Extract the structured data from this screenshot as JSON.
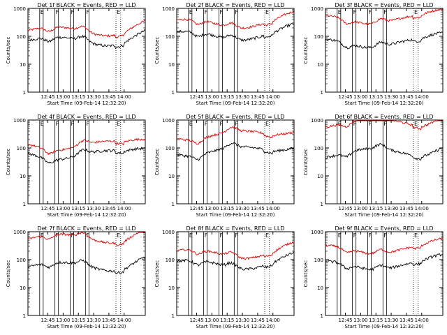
{
  "figure": {
    "panels": [
      {
        "title": "Det 1f BLACK = Events, RED = LLD",
        "events_base": 70,
        "lld_base": 160
      },
      {
        "title": "Det 2f BLACK = Events, RED = LLD",
        "events_base": 110,
        "lld_base": 300
      },
      {
        "title": "Det 3f BLACK = Events, RED = LLD",
        "events_base": 60,
        "lld_base": 420
      },
      {
        "title": "Det 4f BLACK = Events, RED = LLD",
        "events_base": 60,
        "lld_base": 130
      },
      {
        "title": "Det 5f BLACK = Events, RED = LLD",
        "events_base": 80,
        "lld_base": 300
      },
      {
        "title": "Det 6f BLACK = Events, RED = LLD",
        "events_base": 70,
        "lld_base": 850
      },
      {
        "title": "Det 7f BLACK = Events, RED = LLD",
        "events_base": 60,
        "lld_base": 600
      },
      {
        "title": "Det 8f BLACK = Events, RED = LLD",
        "events_base": 70,
        "lld_base": 170
      },
      {
        "title": "Det 9f BLACK = Events, RED = LLD",
        "events_base": 65,
        "lld_base": 240
      }
    ],
    "ylabel": "Counts/sec",
    "xlabel": "Start Time (09-Feb-14 12:32:20)",
    "x_ticks": [
      "12:45",
      "13:00",
      "13:15",
      "13:30",
      "13:45",
      "14:00"
    ],
    "y_ticks": [
      "1",
      "10",
      "100",
      "1000"
    ],
    "markers": [
      {
        "label": "E",
        "style": "solid"
      },
      {
        "label": "F",
        "style": "solid"
      },
      {
        "label": "F",
        "style": "solid"
      },
      {
        "label": "F",
        "style": "solid"
      },
      {
        "label": "E",
        "style": "dotted"
      }
    ],
    "colors": {
      "events": "#000000",
      "lld": "#e00000",
      "axes": "#000000"
    }
  },
  "chart_data": {
    "type": "line",
    "x": [
      "12:45",
      "13:00",
      "13:15",
      "13:30",
      "13:45",
      "14:00"
    ],
    "ylim": [
      1,
      1000
    ],
    "yscale": "log",
    "series": [
      {
        "name": "BLACK = Events",
        "color": "#000000"
      },
      {
        "name": "RED = LLD",
        "color": "#e00000"
      }
    ]
  }
}
